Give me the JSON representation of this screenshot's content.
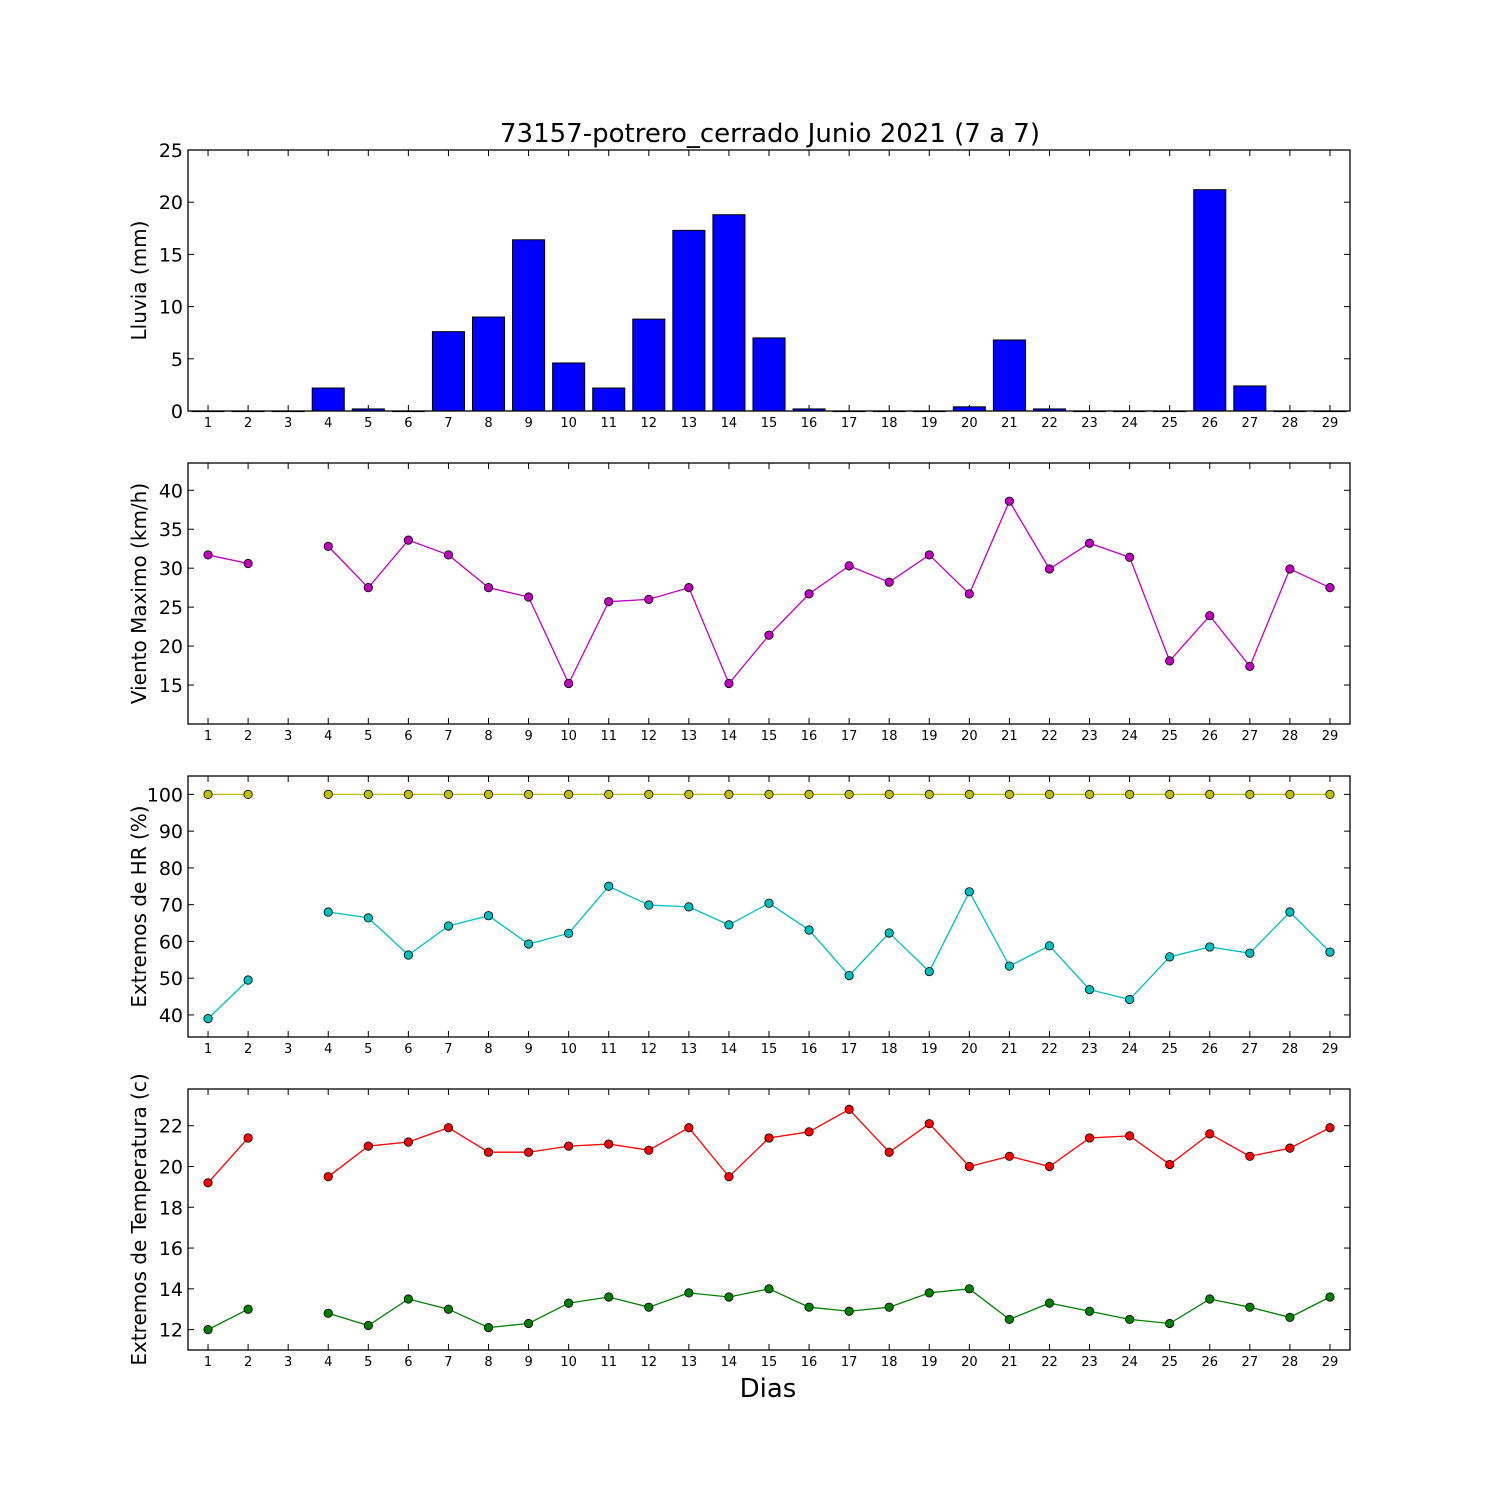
{
  "chart_data": {
    "title": "73157-potrero_cerrado Junio 2021  (7 a 7)",
    "xlabel": "Dias",
    "days": [
      1,
      2,
      3,
      4,
      5,
      6,
      7,
      8,
      9,
      10,
      11,
      12,
      13,
      14,
      15,
      16,
      17,
      18,
      19,
      20,
      21,
      22,
      23,
      24,
      25,
      26,
      27,
      28,
      29
    ],
    "panels": [
      {
        "id": "lluvia",
        "type": "bar",
        "ylabel": "Lluvia (mm)",
        "ylim": [
          0,
          25
        ],
        "yticks": [
          0,
          5,
          10,
          15,
          20,
          25
        ],
        "series": [
          {
            "color": "#0000ff",
            "values": [
              0,
              0,
              0,
              2.2,
              0.2,
              0,
              7.6,
              9.0,
              16.4,
              4.6,
              2.2,
              8.8,
              17.3,
              18.8,
              7.0,
              0.2,
              0,
              0,
              0,
              0.4,
              6.8,
              0.2,
              0,
              0,
              0,
              21.2,
              2.4,
              0,
              0
            ]
          }
        ]
      },
      {
        "id": "viento",
        "type": "line",
        "ylabel": "Viento Maximo (km/h)",
        "ylim": [
          10,
          43.5
        ],
        "yticks": [
          15,
          20,
          25,
          30,
          35,
          40
        ],
        "series": [
          {
            "color": "#bf00bf",
            "values": [
              31.7,
              30.6,
              null,
              32.8,
              27.5,
              33.6,
              31.7,
              27.5,
              26.3,
              15.2,
              25.7,
              26.0,
              27.5,
              15.2,
              21.4,
              26.7,
              30.3,
              28.2,
              31.7,
              26.7,
              38.6,
              29.9,
              33.2,
              31.4,
              18.1,
              23.9,
              17.4,
              29.9,
              27.5
            ]
          }
        ]
      },
      {
        "id": "hr",
        "type": "line",
        "ylabel": "Extremos de HR (%)",
        "ylim": [
          34,
          105
        ],
        "yticks": [
          40,
          50,
          60,
          70,
          80,
          90,
          100
        ],
        "series": [
          {
            "color": "#bfbf00",
            "values": [
              100,
              100,
              null,
              100,
              100,
              100,
              100,
              100,
              100,
              100,
              100,
              100,
              100,
              100,
              100,
              100,
              100,
              100,
              100,
              100,
              100,
              100,
              100,
              100,
              100,
              100,
              100,
              100,
              100
            ]
          },
          {
            "color": "#00bfbf",
            "values": [
              39,
              49.5,
              null,
              68,
              66.4,
              56.3,
              64.2,
              67,
              59.3,
              62.2,
              75,
              69.9,
              69.4,
              64.5,
              70.4,
              63.1,
              50.7,
              62.3,
              51.8,
              73.5,
              53.3,
              58.8,
              46.9,
              44.2,
              55.8,
              58.5,
              56.8,
              68,
              57.1
            ]
          }
        ]
      },
      {
        "id": "temperatura",
        "type": "line",
        "ylabel": "Extremos de Temperatura (c)",
        "ylim": [
          11,
          23.8
        ],
        "yticks": [
          12,
          14,
          16,
          18,
          20,
          22
        ],
        "series": [
          {
            "color": "#ff0000",
            "values": [
              19.2,
              21.4,
              null,
              19.5,
              21.0,
              21.2,
              21.9,
              20.7,
              20.7,
              21.0,
              21.1,
              20.8,
              21.9,
              19.5,
              21.4,
              21.7,
              22.8,
              20.7,
              22.1,
              20.0,
              20.5,
              20.0,
              21.4,
              21.5,
              20.1,
              21.6,
              20.5,
              20.9,
              21.9
            ]
          },
          {
            "color": "#008000",
            "values": [
              12.0,
              13.0,
              null,
              12.8,
              12.2,
              13.5,
              13.0,
              12.1,
              12.3,
              13.3,
              13.6,
              13.1,
              13.8,
              13.6,
              14.0,
              13.1,
              12.9,
              13.1,
              13.8,
              14.0,
              12.5,
              13.3,
              12.9,
              12.5,
              12.3,
              13.5,
              13.1,
              12.6,
              13.6
            ]
          }
        ]
      }
    ]
  }
}
